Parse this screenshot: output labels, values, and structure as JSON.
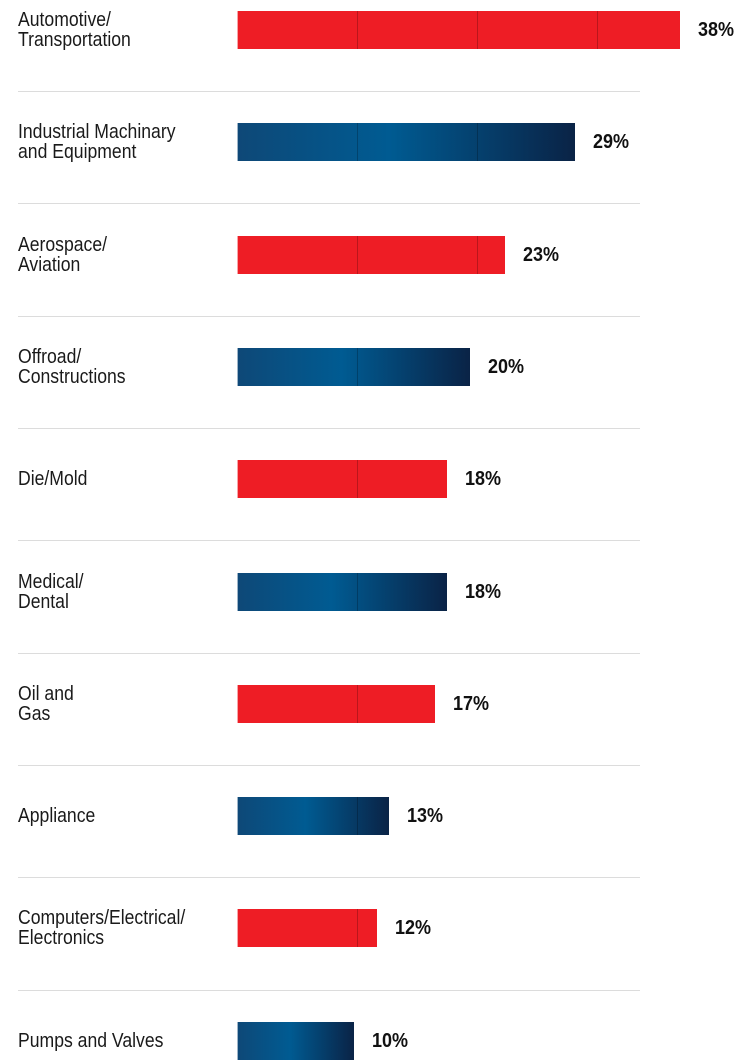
{
  "chart_data": {
    "type": "bar",
    "orientation": "horizontal",
    "categories": [
      [
        "Automotive/",
        "Transportation"
      ],
      [
        "Industrial Machinary",
        "and Equipment"
      ],
      [
        "Aerospace/",
        "Aviation"
      ],
      [
        "Offroad/",
        "Constructions"
      ],
      [
        "Die/Mold"
      ],
      [
        "Medical/",
        "Dental"
      ],
      [
        "Oil and",
        "Gas"
      ],
      [
        "Appliance"
      ],
      [
        "Computers/Electrical/",
        "Electronics"
      ],
      [
        "Pumps and Valves"
      ]
    ],
    "values": [
      38,
      29,
      23,
      20,
      18,
      18,
      17,
      13,
      12,
      10
    ],
    "value_labels": [
      "38%",
      "29%",
      "23%",
      "20%",
      "18%",
      "18%",
      "17%",
      "13%",
      "12%",
      "10%"
    ],
    "unit": "%",
    "title": "",
    "xlabel": "",
    "ylabel": "",
    "xlim": [
      0,
      38
    ],
    "bar_styles": [
      "red",
      "blue",
      "red",
      "blue",
      "red",
      "blue",
      "red",
      "blue",
      "red",
      "blue"
    ],
    "grid": true,
    "legend": "none"
  },
  "colors": {
    "red": "#ee1d25",
    "blue_start": "#0e4877",
    "blue_mid": "#005b92",
    "blue_end": "#0a2346",
    "separator": "#dcdcdc"
  }
}
